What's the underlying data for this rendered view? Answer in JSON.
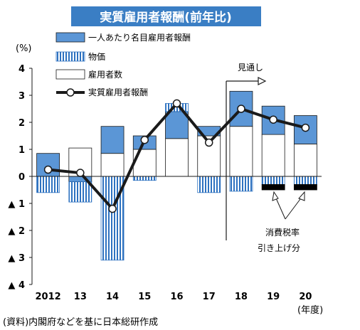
{
  "title": "実質雇用者報酬(前年比)",
  "source": "(資料)内閣府などを基に日本総研作成",
  "colors": {
    "title_bg": "#3a7ec4",
    "nominal": "#5b96d6",
    "price": "#2e72c0",
    "line": "#1a1a1a",
    "tax": "#000000"
  },
  "chart_data": {
    "type": "bar",
    "unit": "(%)",
    "xlabel": "(年度)",
    "ylim": [
      -4,
      4
    ],
    "yticks": [
      {
        "value": 4,
        "label": "4"
      },
      {
        "value": 3,
        "label": "3"
      },
      {
        "value": 2,
        "label": "2"
      },
      {
        "value": 1,
        "label": "1"
      },
      {
        "value": 0,
        "label": "0"
      },
      {
        "value": -1,
        "label": "▲ 1"
      },
      {
        "value": -2,
        "label": "▲ 2"
      },
      {
        "value": -3,
        "label": "▲ 3"
      },
      {
        "value": -4,
        "label": "▲ 4"
      }
    ],
    "categories": [
      "2012",
      "13",
      "14",
      "15",
      "16",
      "17",
      "18",
      "19",
      "20"
    ],
    "legend": [
      "一人あたり名目雇用者報酬",
      "物価",
      "雇用者数",
      "実質雇用者報酬"
    ],
    "series": [
      {
        "name": "一人あたり名目雇用者報酬",
        "values": [
          0.85,
          -0.2,
          1.0,
          0.5,
          1.0,
          0.35,
          1.3,
          1.05,
          1.05
        ]
      },
      {
        "name": "物価",
        "values": [
          -0.6,
          -0.75,
          -3.1,
          -0.15,
          0.3,
          -0.6,
          -0.55,
          -0.3,
          -0.3
        ]
      },
      {
        "name": "雇用者数",
        "values": [
          0.0,
          1.05,
          0.85,
          1.0,
          1.4,
          1.5,
          1.85,
          1.55,
          1.2
        ]
      },
      {
        "name": "消費税率引き上げ分",
        "values": [
          0,
          0,
          0,
          0,
          0,
          0,
          0,
          -0.2,
          -0.2
        ]
      },
      {
        "name": "実質雇用者報酬",
        "values": [
          0.25,
          0.13,
          -1.2,
          1.35,
          2.7,
          1.25,
          2.5,
          2.1,
          1.8
        ]
      }
    ],
    "annotations": {
      "forecast": "見通し",
      "tax_line1": "消費税率",
      "tax_line2": "引き上げ分"
    }
  }
}
